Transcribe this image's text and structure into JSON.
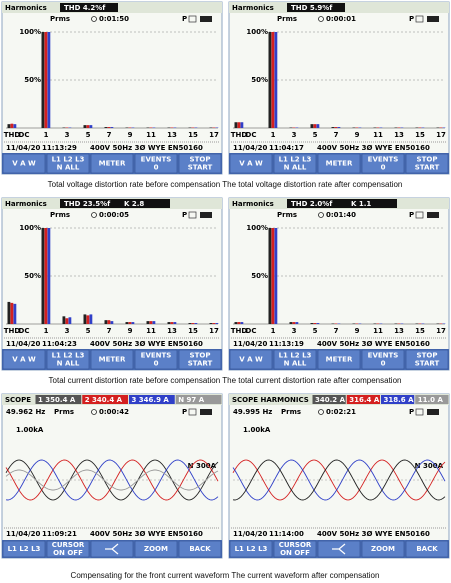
{
  "panels": [
    {
      "kind": "harmonics",
      "title": "Harmonics",
      "thd": "THD  4.2%f",
      "mode": "Prms",
      "time": "0:01:50",
      "date": "11/04/20",
      "clock": "11:13:29",
      "status": "400V  50Hz 3Ø WYE   EN50160",
      "ylim": [
        0,
        100
      ],
      "yticks": [
        {
          "value": 50,
          "label": "50%"
        },
        {
          "value": 100,
          "label": "100%"
        }
      ],
      "labels": [
        "THD",
        "DC",
        "1",
        null,
        "3",
        null,
        "5",
        null,
        "7",
        null,
        "9",
        null,
        "11",
        null,
        "13",
        null,
        "15",
        null,
        "17"
      ],
      "colors": [
        "#222222",
        "#d42020",
        "#3040c8"
      ],
      "values": [
        [
          4,
          4.5,
          4
        ],
        [
          0,
          0,
          0
        ],
        [
          100,
          100,
          100
        ],
        [
          0,
          0,
          0
        ],
        [
          0.5,
          0.5,
          0.5
        ],
        [
          0,
          0,
          0
        ],
        [
          3,
          3,
          3
        ],
        [
          0,
          0,
          0
        ],
        [
          1,
          1,
          1
        ],
        [
          0,
          0,
          0
        ],
        [
          0.5,
          0.5,
          0.5
        ],
        [
          0,
          0,
          0
        ],
        [
          0.5,
          0.5,
          0.5
        ],
        [
          0,
          0,
          0
        ],
        [
          0.5,
          0.5,
          0.5
        ],
        [
          0,
          0,
          0
        ],
        [
          0.5,
          0.5,
          0.5
        ],
        [
          0,
          0,
          0
        ],
        [
          0.5,
          0.5,
          0.5
        ]
      ],
      "softkeys": [
        [
          "V  A  W"
        ],
        [
          "L1 L2 L3",
          "N  ALL"
        ],
        [
          "METER"
        ],
        [
          "EVENTS",
          "0"
        ],
        [
          "STOP",
          "START"
        ]
      ]
    },
    {
      "kind": "harmonics",
      "title": "Harmonics",
      "thd": "THD  5.9%f",
      "mode": "Prms",
      "time": "0:00:01",
      "date": "11/04/20",
      "clock": "11:04:17",
      "status": "400V  50Hz 3Ø WYE   EN50160",
      "ylim": [
        0,
        100
      ],
      "yticks": [
        {
          "value": 50,
          "label": "50%"
        },
        {
          "value": 100,
          "label": "100%"
        }
      ],
      "labels": [
        "THD",
        "DC",
        "1",
        null,
        "3",
        null,
        "5",
        null,
        "7",
        null,
        "9",
        null,
        "11",
        null,
        "13",
        null,
        "15",
        null,
        "17"
      ],
      "colors": [
        "#222222",
        "#d42020",
        "#3040c8"
      ],
      "values": [
        [
          6,
          6,
          6
        ],
        [
          0,
          0,
          0
        ],
        [
          100,
          100,
          100
        ],
        [
          0,
          0,
          0
        ],
        [
          0.5,
          0.5,
          0.5
        ],
        [
          0,
          0,
          0
        ],
        [
          4,
          4,
          4
        ],
        [
          0,
          0,
          0
        ],
        [
          1,
          1,
          1
        ],
        [
          0,
          0,
          0
        ],
        [
          0.5,
          0.5,
          0.5
        ],
        [
          0,
          0,
          0
        ],
        [
          0.5,
          0.5,
          0.5
        ],
        [
          0,
          0,
          0
        ],
        [
          0.5,
          0.5,
          0.5
        ],
        [
          0,
          0,
          0
        ],
        [
          0.5,
          0.5,
          0.5
        ],
        [
          0,
          0,
          0
        ],
        [
          0.5,
          0.5,
          0.5
        ]
      ],
      "softkeys": [
        [
          "V  A  W"
        ],
        [
          "L1 L2 L3",
          "N  ALL"
        ],
        [
          "METER"
        ],
        [
          "EVENTS",
          "0"
        ],
        [
          "STOP",
          "START"
        ]
      ]
    },
    {
      "kind": "harmonics",
      "title": "Harmonics",
      "thd": "THD  23.5%f",
      "k": "K    2.8",
      "mode": "Prms",
      "time": "0:00:05",
      "date": "11/04/20",
      "clock": "11:04:23",
      "status": "400V  50Hz 3Ø WYE   EN50160",
      "ylim": [
        0,
        100
      ],
      "yticks": [
        {
          "value": 50,
          "label": "50%"
        },
        {
          "value": 100,
          "label": "100%"
        }
      ],
      "labels": [
        "THD",
        "DC",
        "1",
        null,
        "3",
        null,
        "5",
        null,
        "7",
        null,
        "9",
        null,
        "11",
        null,
        "13",
        null,
        "15",
        null,
        "17"
      ],
      "colors": [
        "#222222",
        "#d42020",
        "#3040c8"
      ],
      "values": [
        [
          23,
          22,
          21
        ],
        [
          0,
          0,
          0
        ],
        [
          100,
          100,
          100
        ],
        [
          0,
          0,
          0
        ],
        [
          8,
          6,
          7
        ],
        [
          0,
          0,
          0
        ],
        [
          10,
          9,
          10
        ],
        [
          0,
          0,
          0
        ],
        [
          4,
          4,
          3
        ],
        [
          0,
          0,
          0
        ],
        [
          2,
          2,
          2
        ],
        [
          0,
          0,
          0
        ],
        [
          3,
          3,
          3
        ],
        [
          0,
          0,
          0
        ],
        [
          2,
          2,
          2
        ],
        [
          0,
          0,
          0
        ],
        [
          1,
          1,
          1
        ],
        [
          0,
          0,
          0
        ],
        [
          1,
          1,
          1
        ]
      ],
      "softkeys": [
        [
          "V  A  W"
        ],
        [
          "L1 L2 L3",
          "N  ALL"
        ],
        [
          "METER"
        ],
        [
          "EVENTS",
          "0"
        ],
        [
          "STOP",
          "START"
        ]
      ]
    },
    {
      "kind": "harmonics",
      "title": "Harmonics",
      "thd": "THD  2.0%f",
      "k": "K    1.1",
      "mode": "Prms",
      "time": "0:01:40",
      "date": "11/04/20",
      "clock": "11:13:19",
      "status": "400V  50Hz 3Ø WYE   EN50160",
      "ylim": [
        0,
        100
      ],
      "yticks": [
        {
          "value": 50,
          "label": "50%"
        },
        {
          "value": 100,
          "label": "100%"
        }
      ],
      "labels": [
        "THD",
        "DC",
        "1",
        null,
        "3",
        null,
        "5",
        null,
        "7",
        null,
        "9",
        null,
        "11",
        null,
        "13",
        null,
        "15",
        null,
        "17"
      ],
      "colors": [
        "#222222",
        "#d42020",
        "#3040c8"
      ],
      "values": [
        [
          2,
          2,
          2
        ],
        [
          0,
          0,
          0
        ],
        [
          100,
          100,
          100
        ],
        [
          0,
          0,
          0
        ],
        [
          2,
          2,
          2
        ],
        [
          0,
          0,
          0
        ],
        [
          1,
          1,
          1
        ],
        [
          0,
          0,
          0
        ],
        [
          0.5,
          0.5,
          0.5
        ],
        [
          0,
          0,
          0
        ],
        [
          0.5,
          0.5,
          0.5
        ],
        [
          0,
          0,
          0
        ],
        [
          0.5,
          0.5,
          0.5
        ],
        [
          0,
          0,
          0
        ],
        [
          0.5,
          0.5,
          0.5
        ],
        [
          0,
          0,
          0
        ],
        [
          0.5,
          0.5,
          0.5
        ],
        [
          0,
          0,
          0
        ],
        [
          0.5,
          0.5,
          0.5
        ]
      ],
      "softkeys": [
        [
          "V  A  W"
        ],
        [
          "L1 L2 L3",
          "N  ALL"
        ],
        [
          "METER"
        ],
        [
          "EVENTS",
          "0"
        ],
        [
          "STOP",
          "START"
        ]
      ]
    },
    {
      "kind": "scope",
      "title": "SCOPE",
      "readings": [
        {
          "text": "1  350.4 A",
          "color": "#555555"
        },
        {
          "text": "2  340.4 A",
          "color": "#d42020"
        },
        {
          "text": "3  346.9 A",
          "color": "#3040c8"
        },
        {
          "text": "N    97 A",
          "color": "#999999"
        }
      ],
      "freq": "49.962 Hz",
      "mode": "Prms",
      "time": "0:00:42",
      "scale": "1.00kA",
      "marker": "N 300A",
      "date": "11/04/20",
      "clock": "11:09:21",
      "status": "400V  50Hz 3Ø WYE   EN50160",
      "wave_colors": [
        "#222222",
        "#d42020",
        "#3040c8",
        "#999999"
      ],
      "softkeys": [
        [
          "L1 L2 L3"
        ],
        [
          "CURSOR",
          "ON OFF"
        ],
        null,
        [
          "ZOOM"
        ],
        [
          "BACK"
        ]
      ]
    },
    {
      "kind": "scope",
      "title": "SCOPE HARMONICS",
      "readings": [
        {
          "text": "340.2 A",
          "color": "#555555"
        },
        {
          "text": "316.4 A",
          "color": "#d42020"
        },
        {
          "text": "318.6 A",
          "color": "#3040c8"
        },
        {
          "text": "11.0 A",
          "color": "#999999"
        }
      ],
      "freq": "49.995 Hz",
      "mode": "Prms",
      "time": "0:02:21",
      "scale": "1.00kA",
      "marker": "N 300A",
      "date": "11/04/20",
      "clock": "11:14:00",
      "status": "400V  50Hz 3Ø WYE   EN50160",
      "wave_colors": [
        "#d42020",
        "#3040c8",
        "#222222"
      ],
      "softkeys": [
        [
          "L1 L2 L3"
        ],
        [
          "CURSOR",
          "ON OFF"
        ],
        null,
        [
          "ZOOM"
        ],
        [
          "BACK"
        ]
      ]
    }
  ],
  "captions": [
    "Total voltage distortion rate before compensation The total voltage distortion rate after compensation",
    "Total current distortion rate before compensation The total current distortion rate after compensation",
    "Compensating for the front current waveform The current waveform after compensation"
  ]
}
